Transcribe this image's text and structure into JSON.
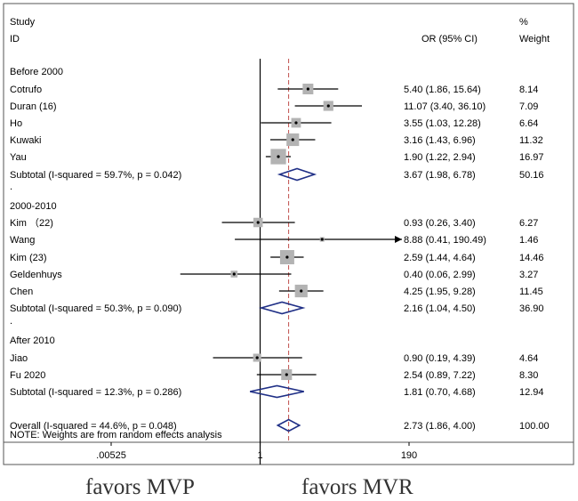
{
  "header": {
    "study_line1": "Study",
    "study_line2": "ID",
    "or_label": "OR (95% CI)",
    "weight_line1": "%",
    "weight_line2": "Weight"
  },
  "chart_data": {
    "type": "forest",
    "x_scale": "log",
    "xlim": [
      0.00525,
      190
    ],
    "x_ticks": [
      {
        "value": 0.00525,
        "label": ".00525"
      },
      {
        "value": 1,
        "label": "1"
      },
      {
        "value": 190,
        "label": "190"
      }
    ],
    "null_line": 1,
    "overall_line": 2.73,
    "groups": [
      {
        "title": "Before 2000",
        "studies": [
          {
            "label": "Cotrufo",
            "or": 5.4,
            "lo": 1.86,
            "hi": 15.64,
            "ci_text": "5.40 (1.86, 15.64)",
            "weight": 8.14,
            "weight_text": "8.14"
          },
          {
            "label": "Duran (16)",
            "or": 11.07,
            "lo": 3.4,
            "hi": 36.1,
            "ci_text": "11.07 (3.40, 36.10)",
            "weight": 7.09,
            "weight_text": "7.09"
          },
          {
            "label": "Ho",
            "or": 3.55,
            "lo": 1.03,
            "hi": 12.28,
            "ci_text": "3.55 (1.03, 12.28)",
            "weight": 6.64,
            "weight_text": "6.64"
          },
          {
            "label": "Kuwaki",
            "or": 3.16,
            "lo": 1.43,
            "hi": 6.96,
            "ci_text": "3.16 (1.43, 6.96)",
            "weight": 11.32,
            "weight_text": "11.32"
          },
          {
            "label": "Yau",
            "or": 1.9,
            "lo": 1.22,
            "hi": 2.94,
            "ci_text": "1.90 (1.22, 2.94)",
            "weight": 16.97,
            "weight_text": "16.97"
          }
        ],
        "subtotal": {
          "label": "Subtotal  (I-squared = 59.7%, p = 0.042)",
          "or": 3.67,
          "lo": 1.98,
          "hi": 6.78,
          "ci_text": "3.67 (1.98, 6.78)",
          "weight_text": "50.16"
        }
      },
      {
        "title": "2000-2010",
        "studies": [
          {
            "label": "Kim （22)",
            "or": 0.93,
            "lo": 0.26,
            "hi": 3.4,
            "ci_text": "0.93 (0.26, 3.40)",
            "weight": 6.27,
            "weight_text": "6.27"
          },
          {
            "label": "Wang",
            "or": 8.88,
            "lo": 0.41,
            "hi": 190.49,
            "ci_text": "8.88 (0.41, 190.49)",
            "weight": 1.46,
            "weight_text": "1.46",
            "arrow_right": true
          },
          {
            "label": "Kim (23)",
            "or": 2.59,
            "lo": 1.44,
            "hi": 4.64,
            "ci_text": "2.59 (1.44, 4.64)",
            "weight": 14.46,
            "weight_text": "14.46"
          },
          {
            "label": "Geldenhuys",
            "or": 0.4,
            "lo": 0.06,
            "hi": 2.99,
            "ci_text": "0.40 (0.06, 2.99)",
            "weight": 3.27,
            "weight_text": "3.27"
          },
          {
            "label": "Chen",
            "or": 4.25,
            "lo": 1.95,
            "hi": 9.28,
            "ci_text": "4.25 (1.95, 9.28)",
            "weight": 11.45,
            "weight_text": "11.45"
          }
        ],
        "subtotal": {
          "label": "Subtotal  (I-squared = 50.3%, p = 0.090)",
          "or": 2.16,
          "lo": 1.04,
          "hi": 4.5,
          "ci_text": "2.16 (1.04, 4.50)",
          "weight_text": "36.90"
        }
      },
      {
        "title": "After 2010",
        "studies": [
          {
            "label": "Jiao",
            "or": 0.9,
            "lo": 0.19,
            "hi": 4.39,
            "ci_text": "0.90 (0.19, 4.39)",
            "weight": 4.64,
            "weight_text": "4.64"
          },
          {
            "label": "Fu 2020",
            "or": 2.54,
            "lo": 0.89,
            "hi": 7.22,
            "ci_text": "2.54 (0.89, 7.22)",
            "weight": 8.3,
            "weight_text": "8.30"
          }
        ],
        "subtotal": {
          "label": "Subtotal  (I-squared = 12.3%, p = 0.286)",
          "or": 1.81,
          "lo": 0.7,
          "hi": 4.68,
          "ci_text": "1.81 (0.70, 4.68)",
          "weight_text": "12.94"
        }
      }
    ],
    "overall": {
      "label": "Overall  (I-squared = 44.6%, p = 0.048)",
      "or": 2.73,
      "lo": 1.86,
      "hi": 4.0,
      "ci_text": "2.73 (1.86, 4.00)",
      "weight_text": "100.00"
    },
    "note": "NOTE: Weights are from random effects analysis",
    "favors_left": "favors MVP",
    "favors_right": "favors MVR",
    "colors": {
      "box": "#b3b3b3",
      "diamond": "#1f2f86",
      "overall_line": "#c0504d",
      "line": "#000000"
    }
  }
}
